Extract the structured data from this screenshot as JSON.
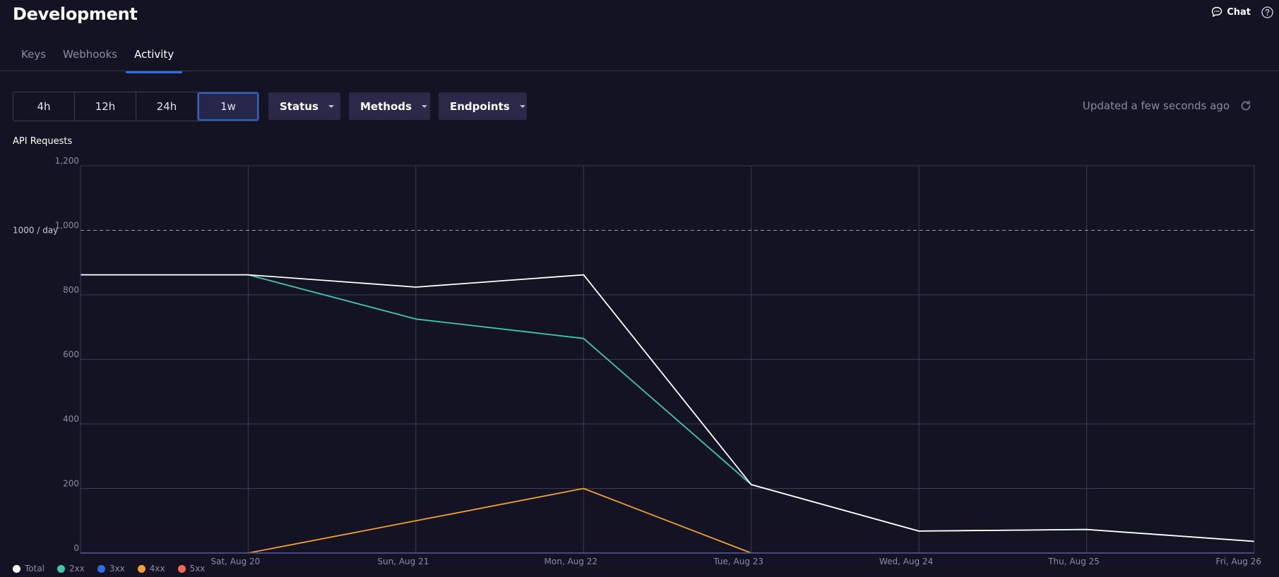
{
  "header": {
    "title": "Development",
    "chat_label": "Chat",
    "chat_icon": "chat-bubble-icon",
    "help_icon": "help-circle-icon"
  },
  "tabs": [
    {
      "label": "Keys",
      "active": false
    },
    {
      "label": "Webhooks",
      "active": false
    },
    {
      "label": "Activity",
      "active": true
    }
  ],
  "time_ranges": [
    {
      "label": "4h",
      "selected": false
    },
    {
      "label": "12h",
      "selected": false
    },
    {
      "label": "24h",
      "selected": false
    },
    {
      "label": "1w",
      "selected": true
    }
  ],
  "filters": {
    "status": "Status",
    "methods": "Methods",
    "endpoints": "Endpoints"
  },
  "updated_text": "Updated a few seconds ago",
  "colors": {
    "background": "#131324",
    "accent": "#2f6fe0",
    "total": "#ffffff",
    "2xx": "#3fc9b0",
    "3xx": "#2f6fe0",
    "4xx": "#f0a030",
    "5xx": "#f06b5e"
  },
  "chart_data": {
    "type": "line",
    "title": "API Requests",
    "x": [
      "",
      "Sat, Aug 20",
      "Sun, Aug 21",
      "Mon, Aug 22",
      "Tue, Aug 23",
      "Wed, Aug 24",
      "Thu, Aug 25",
      "Fri, Aug 26"
    ],
    "ylim": [
      0,
      1200
    ],
    "yticks": [
      "0",
      "200",
      "400",
      "600",
      "800",
      "1,000",
      "1,200"
    ],
    "limit_line": {
      "value": 1000,
      "label": "1000 / day"
    },
    "grid": true,
    "legend_position": "bottom-left",
    "series": [
      {
        "name": "Total",
        "values": [
          862,
          862,
          824,
          862,
          212,
          68,
          73,
          36
        ]
      },
      {
        "name": "2xx",
        "values": [
          862,
          862,
          725,
          665,
          212,
          68,
          73,
          36
        ]
      },
      {
        "name": "3xx",
        "values": [
          0,
          0,
          0,
          0,
          0,
          0,
          0,
          0
        ]
      },
      {
        "name": "4xx",
        "values": [
          null,
          0,
          100,
          200,
          0,
          null,
          null,
          null
        ]
      },
      {
        "name": "5xx",
        "values": [
          0,
          0,
          0,
          0,
          0,
          0,
          0,
          0
        ]
      }
    ]
  }
}
